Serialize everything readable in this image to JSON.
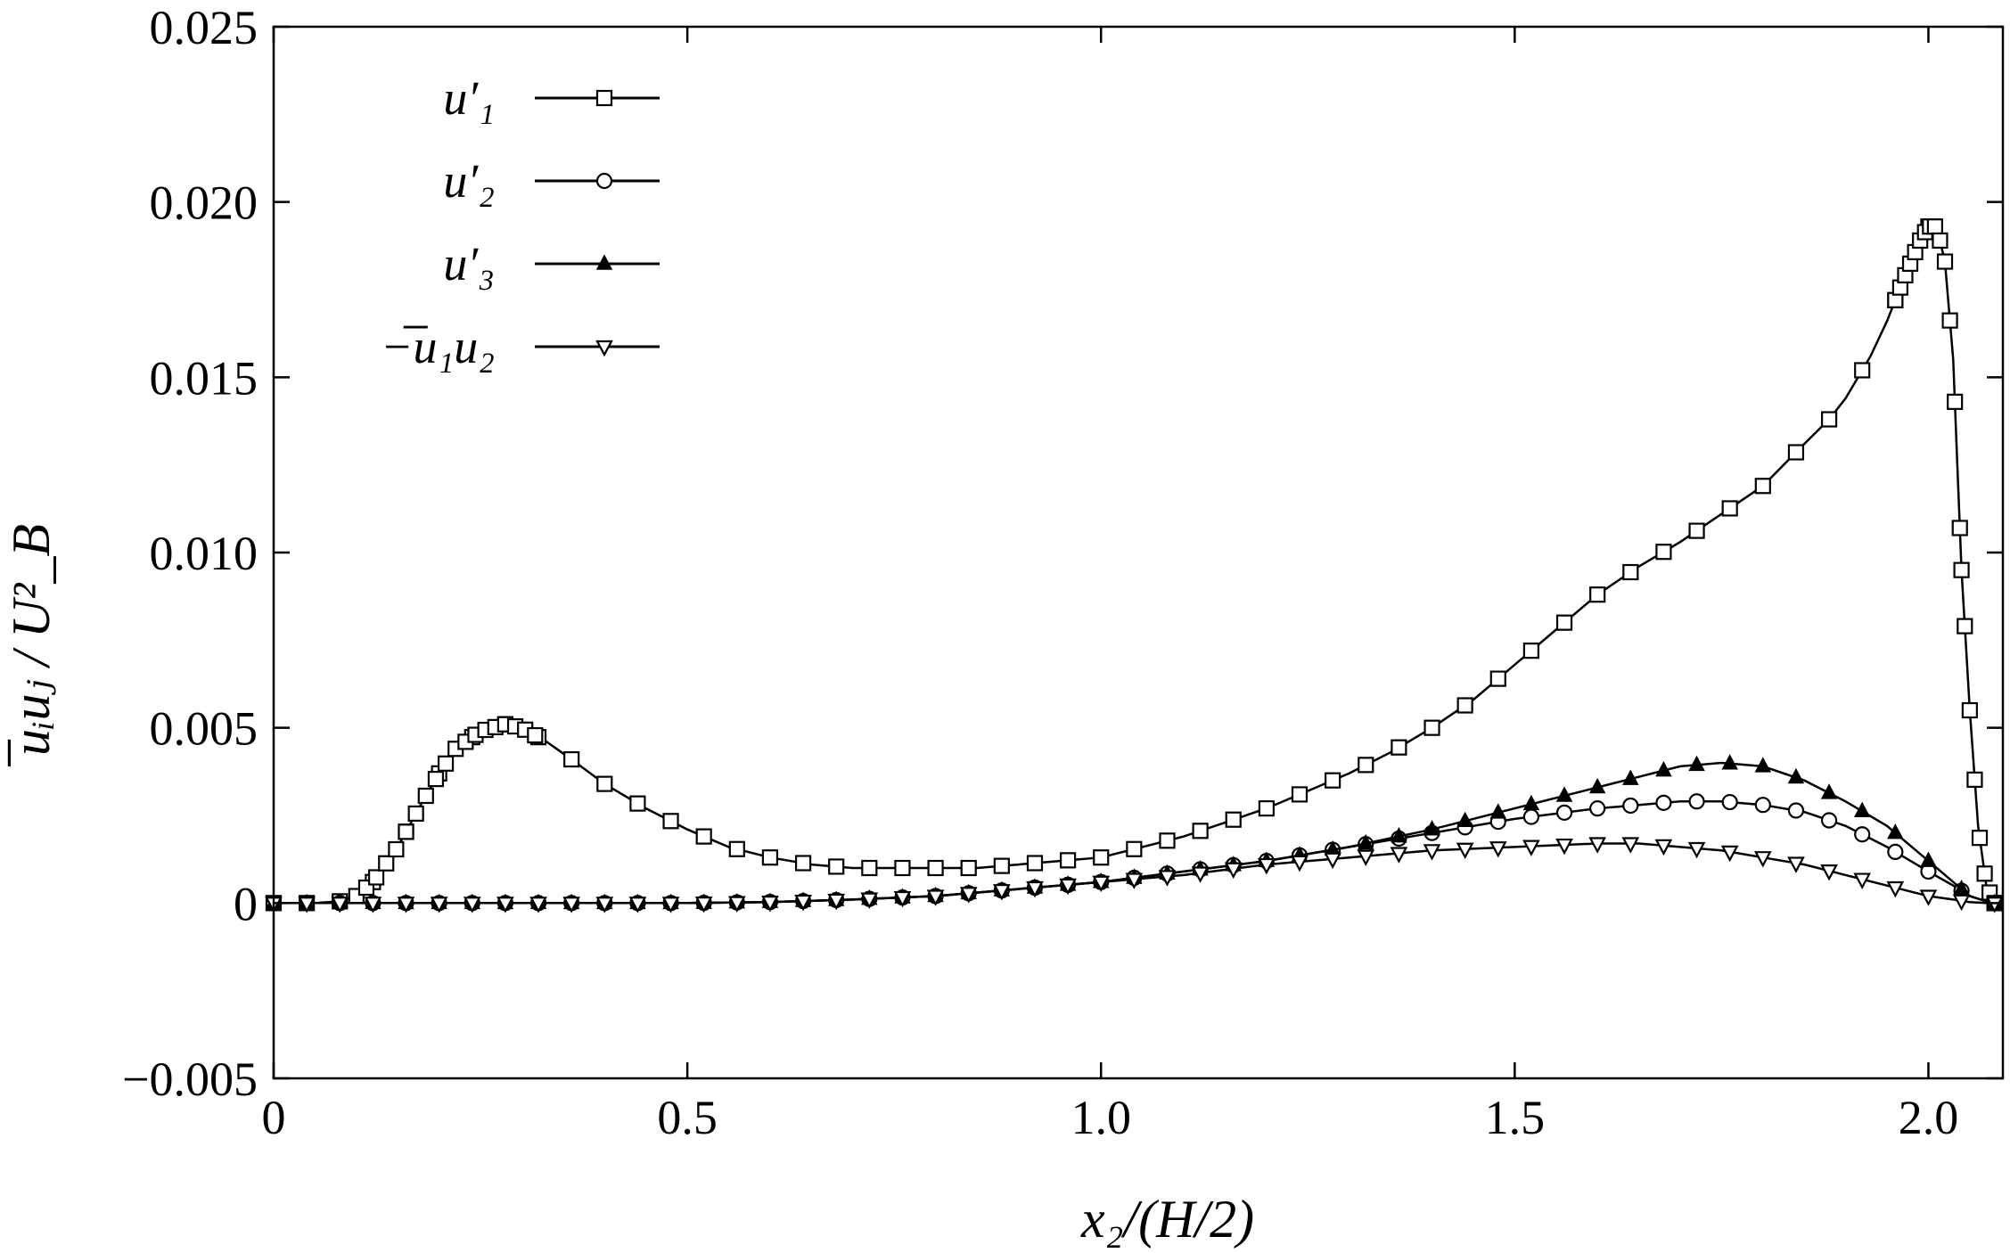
{
  "chart_data": {
    "type": "line",
    "title": "",
    "xlabel": "x₂/(H/2)",
    "ylabel": "̅uᵢuⱼ / U²_B",
    "xlim": [
      0,
      2.09
    ],
    "ylim": [
      -0.005,
      0.025
    ],
    "x_ticks": [
      "0",
      "0.5",
      "1.0",
      "1.5",
      "2.0"
    ],
    "x_tick_values": [
      0,
      0.5,
      1.0,
      1.5,
      2.0
    ],
    "y_ticks": [
      "−0.005",
      "0",
      "0.005",
      "0.010",
      "0.015",
      "0.020",
      "0.025"
    ],
    "y_tick_values": [
      -0.005,
      0,
      0.005,
      0.01,
      0.015,
      0.02,
      0.025
    ],
    "grid": false,
    "legend_position": "top-left",
    "series": [
      {
        "name": "u′₁",
        "marker": "square",
        "x": [
          0,
          0.05,
          0.08,
          0.1,
          0.12,
          0.15,
          0.18,
          0.2,
          0.22,
          0.25,
          0.28,
          0.3,
          0.33,
          0.36,
          0.4,
          0.45,
          0.5,
          0.55,
          0.6,
          0.65,
          0.7,
          0.75,
          0.8,
          0.85,
          0.9,
          0.95,
          1.0,
          1.05,
          1.1,
          1.15,
          1.2,
          1.25,
          1.3,
          1.35,
          1.4,
          1.45,
          1.5,
          1.55,
          1.6,
          1.65,
          1.7,
          1.75,
          1.8,
          1.85,
          1.88,
          1.9,
          1.93,
          1.95,
          1.97,
          1.99,
          2.0,
          2.01,
          2.02,
          2.03,
          2.035,
          2.04,
          2.05,
          2.06,
          2.07,
          2.08
        ],
        "values": [
          0,
          0,
          5e-05,
          0.0002,
          0.0006,
          0.0016,
          0.0029,
          0.0037,
          0.0044,
          0.0049,
          0.0051,
          0.005,
          0.0046,
          0.0041,
          0.0034,
          0.0027,
          0.0021,
          0.0016,
          0.0013,
          0.0011,
          0.001,
          0.001,
          0.001,
          0.001,
          0.0011,
          0.0012,
          0.0013,
          0.0016,
          0.0019,
          0.0023,
          0.0027,
          0.0032,
          0.0037,
          0.0043,
          0.005,
          0.0058,
          0.0068,
          0.0078,
          0.0088,
          0.0096,
          0.0103,
          0.0111,
          0.0119,
          0.0131,
          0.0138,
          0.0144,
          0.0156,
          0.0166,
          0.0178,
          0.0189,
          0.0193,
          0.0193,
          0.0183,
          0.0155,
          0.0125,
          0.0095,
          0.0055,
          0.0022,
          0.0005,
          0.0
        ]
      },
      {
        "name": "u′₂",
        "marker": "circle",
        "x": [
          0,
          0.1,
          0.2,
          0.3,
          0.4,
          0.5,
          0.6,
          0.7,
          0.8,
          0.9,
          1.0,
          1.1,
          1.2,
          1.3,
          1.4,
          1.5,
          1.6,
          1.65,
          1.7,
          1.75,
          1.8,
          1.85,
          1.9,
          1.95,
          2.0,
          2.03,
          2.05,
          2.07,
          2.08
        ],
        "values": [
          0,
          0,
          0,
          0,
          0,
          0,
          3e-05,
          0.0001,
          0.0002,
          0.0004,
          0.0006,
          0.0009,
          0.0012,
          0.0016,
          0.002,
          0.0024,
          0.0027,
          0.0028,
          0.0029,
          0.0029,
          0.0028,
          0.0026,
          0.0022,
          0.0016,
          0.0009,
          0.0005,
          0.0002,
          5e-05,
          0
        ]
      },
      {
        "name": "u′₃",
        "marker": "triangle-up",
        "x": [
          0,
          0.1,
          0.2,
          0.3,
          0.4,
          0.5,
          0.6,
          0.7,
          0.8,
          0.9,
          1.0,
          1.1,
          1.2,
          1.3,
          1.4,
          1.5,
          1.6,
          1.65,
          1.7,
          1.75,
          1.8,
          1.85,
          1.9,
          1.95,
          2.0,
          2.03,
          2.05,
          2.07,
          2.08
        ],
        "values": [
          0,
          0,
          0,
          0,
          0,
          0,
          3e-05,
          0.0001,
          0.0002,
          0.0004,
          0.0006,
          0.0009,
          0.0012,
          0.0016,
          0.0021,
          0.0027,
          0.0033,
          0.0036,
          0.0039,
          0.004,
          0.0039,
          0.0035,
          0.0029,
          0.0022,
          0.0012,
          0.0006,
          0.0002,
          5e-05,
          0
        ]
      },
      {
        "name": "−̅u₁u₂",
        "marker": "triangle-down",
        "x": [
          0,
          0.1,
          0.2,
          0.3,
          0.4,
          0.5,
          0.6,
          0.7,
          0.8,
          0.9,
          1.0,
          1.1,
          1.2,
          1.3,
          1.4,
          1.5,
          1.6,
          1.65,
          1.7,
          1.75,
          1.8,
          1.85,
          1.9,
          1.95,
          2.0,
          2.03,
          2.05,
          2.07,
          2.08
        ],
        "values": [
          0,
          0,
          0,
          0,
          0,
          0,
          3e-05,
          0.0001,
          0.0002,
          0.0004,
          0.0006,
          0.0008,
          0.0011,
          0.0013,
          0.0015,
          0.0016,
          0.0017,
          0.0017,
          0.0016,
          0.0015,
          0.0013,
          0.0011,
          0.0008,
          0.0005,
          0.0002,
          0.0001,
          3e-05,
          0,
          0
        ]
      }
    ]
  }
}
